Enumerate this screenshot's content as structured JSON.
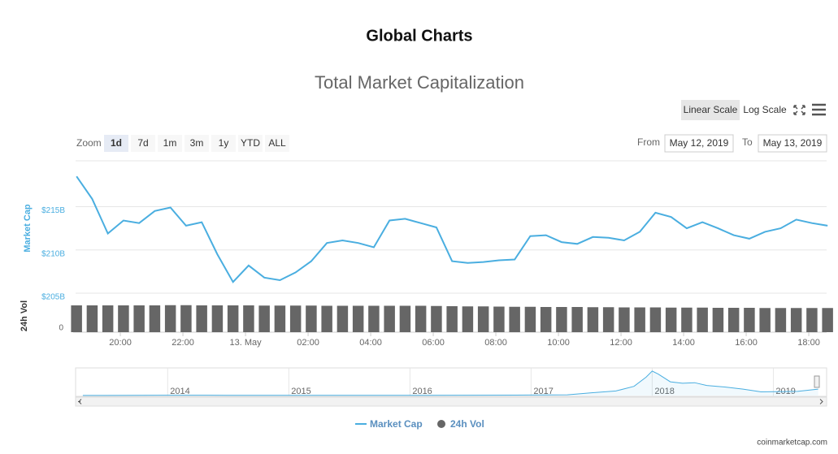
{
  "header": {
    "title": "Global Charts"
  },
  "footer": {
    "credit": "coinmarketcap.com"
  },
  "chart_data": {
    "type": "line",
    "title": "Total Market Capitalization",
    "scale_buttons": [
      "Linear Scale",
      "Log Scale"
    ],
    "zoom_label": "Zoom",
    "zoom_buttons": [
      "1d",
      "7d",
      "1m",
      "3m",
      "1y",
      "YTD",
      "ALL"
    ],
    "zoom_selected": "1d",
    "from_label": "From",
    "from_value": "May 12, 2019",
    "to_label": "To",
    "to_value": "May 13, 2019",
    "y_label": "Market Cap",
    "y2_label": "24h Vol",
    "xlim": [
      18.57,
      42.57
    ],
    "xticks": [
      {
        "value": 20,
        "label": "20:00"
      },
      {
        "value": 22,
        "label": "22:00"
      },
      {
        "value": 24,
        "label": "13. May"
      },
      {
        "value": 26,
        "label": "02:00"
      },
      {
        "value": 28,
        "label": "04:00"
      },
      {
        "value": 30,
        "label": "06:00"
      },
      {
        "value": 32,
        "label": "08:00"
      },
      {
        "value": 34,
        "label": "10:00"
      },
      {
        "value": 36,
        "label": "12:00"
      },
      {
        "value": 38,
        "label": "14:00"
      },
      {
        "value": 40,
        "label": "16:00"
      },
      {
        "value": 42,
        "label": "18:00"
      }
    ],
    "ylim": [
      205,
      220.3
    ],
    "yticks": [
      {
        "value": 205,
        "label": "$205B"
      },
      {
        "value": 210,
        "label": "$210B"
      },
      {
        "value": 215,
        "label": "$215B"
      }
    ],
    "y2lim": [
      0,
      80
    ],
    "y2ticks": [
      0
    ],
    "grid": true,
    "x": [
      18.6,
      19.1,
      19.6,
      20.1,
      20.6,
      21.1,
      21.6,
      22.1,
      22.6,
      23.1,
      23.6,
      24.1,
      24.6,
      25.1,
      25.6,
      26.1,
      26.6,
      27.1,
      27.6,
      28.1,
      28.6,
      29.1,
      29.6,
      30.1,
      30.6,
      31.1,
      31.6,
      32.1,
      32.6,
      33.1,
      33.6,
      34.1,
      34.6,
      35.1,
      35.6,
      36.1,
      36.6,
      37.1,
      37.6,
      38.1,
      38.6,
      39.1,
      39.6,
      40.1,
      40.6,
      41.1,
      41.6,
      42.1,
      42.6
    ],
    "series": [
      {
        "name": "Market Cap",
        "color": "#4aaee0",
        "values": [
          218.5,
          215.9,
          211.9,
          213.4,
          213.1,
          214.5,
          214.9,
          212.8,
          213.2,
          209.5,
          206.3,
          208.2,
          206.8,
          206.5,
          207.4,
          208.7,
          210.8,
          211.1,
          210.8,
          210.3,
          213.4,
          213.6,
          213.1,
          212.6,
          208.7,
          208.5,
          208.6,
          208.8,
          208.9,
          211.6,
          211.7,
          210.9,
          210.7,
          211.5,
          211.4,
          211.1,
          212.1,
          214.3,
          213.8,
          212.5,
          213.2,
          212.5,
          211.7,
          211.3,
          212.1,
          212.5,
          213.5,
          213.1,
          212.8
        ]
      },
      {
        "name": "24h Vol",
        "color": "#666666",
        "axis": "y2",
        "values": [
          66,
          66,
          66,
          66,
          66,
          66,
          66.5,
          66.5,
          66,
          66,
          66,
          66,
          65.5,
          65.5,
          65.5,
          65.5,
          65,
          65,
          65,
          65,
          65,
          65,
          65,
          64.5,
          64,
          63.5,
          63.5,
          63,
          62.5,
          62.5,
          62,
          62,
          62,
          61.5,
          61.5,
          61,
          61,
          61,
          60.5,
          60.5,
          60.5,
          60,
          60,
          60,
          59.5,
          59.5,
          59.5,
          59.5,
          59.5
        ]
      }
    ],
    "navigator": {
      "xlim": [
        2013.24,
        2019.44
      ],
      "ylim": [
        0,
        850
      ],
      "xticks": [
        2014,
        2015,
        2016,
        2017,
        2018,
        2019
      ],
      "x": [
        2013.3,
        2014,
        2014.5,
        2015,
        2015.5,
        2016,
        2016.5,
        2017,
        2017.3,
        2017.5,
        2017.7,
        2017.85,
        2017.95,
        2018,
        2018.05,
        2018.15,
        2018.25,
        2018.35,
        2018.45,
        2018.6,
        2018.75,
        2018.9,
        2019,
        2019.2,
        2019.37
      ],
      "values": [
        2,
        10,
        8,
        5,
        4,
        7,
        10,
        17,
        25,
        90,
        150,
        300,
        600,
        800,
        700,
        450,
        400,
        420,
        330,
        280,
        210,
        120,
        125,
        135,
        210
      ]
    }
  }
}
